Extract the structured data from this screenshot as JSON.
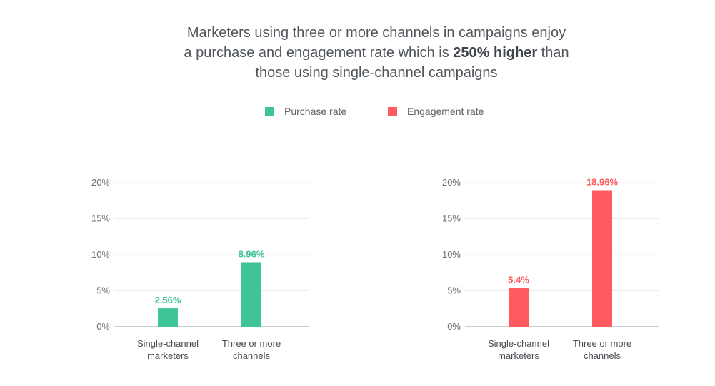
{
  "title": {
    "line1": "Marketers using three or more channels in campaigns enjoy",
    "line2_pre": "a purchase and engagement rate which is ",
    "line2_bold": "250% higher",
    "line2_post": " than",
    "line3": "those using single-channel campaigns"
  },
  "legend": [
    {
      "label": "Purchase rate",
      "color": "#3ec495"
    },
    {
      "label": "Engagement rate",
      "color": "#ff5a5f"
    }
  ],
  "chart_data": [
    {
      "type": "bar",
      "categories": [
        "Single-channel\nmarketers",
        "Three or more\nchannels"
      ],
      "series": [
        {
          "name": "Purchase rate",
          "values": [
            2.56,
            8.96
          ],
          "labels": [
            "2.56%",
            "8.96%"
          ]
        }
      ],
      "color": "#3ec495",
      "ylim": [
        0,
        20
      ],
      "yticks": [
        "0%",
        "5%",
        "10%",
        "15%",
        "20%"
      ],
      "grid": true,
      "legend": "top-center"
    },
    {
      "type": "bar",
      "categories": [
        "Single-channel\nmarketers",
        "Three or more\nchannels"
      ],
      "series": [
        {
          "name": "Engagement rate",
          "values": [
            5.4,
            18.96
          ],
          "labels": [
            "5.4%",
            "18.96%"
          ]
        }
      ],
      "color": "#ff5a5f",
      "ylim": [
        0,
        20
      ],
      "yticks": [
        "0%",
        "5%",
        "10%",
        "15%",
        "20%"
      ],
      "grid": true,
      "legend": "top-center"
    }
  ]
}
